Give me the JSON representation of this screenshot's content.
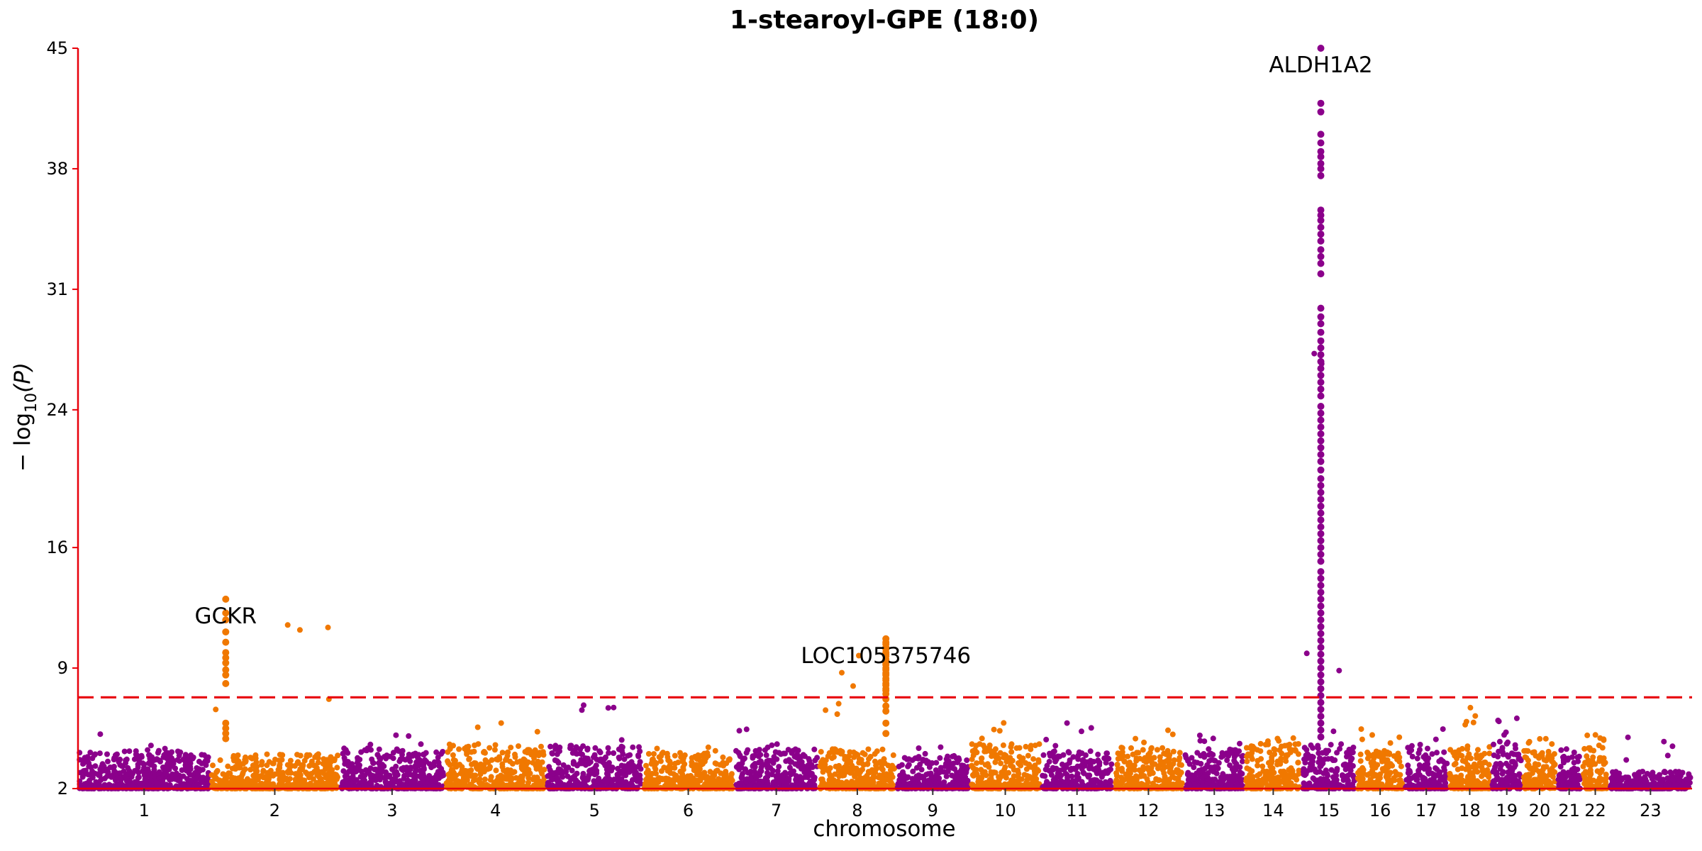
{
  "chart_data": {
    "type": "scatter",
    "subtype": "manhattan",
    "title": "1-stearoyl-GPE (18:0)",
    "xlabel": "chromosome",
    "ylabel_parts": {
      "pre": "− log",
      "sub": "10",
      "post": "(P)"
    },
    "ylim": [
      2,
      45
    ],
    "y_ticks": [
      2,
      9,
      16,
      24,
      31,
      38,
      45
    ],
    "grid": false,
    "legend": "none",
    "significance_threshold": 7.3,
    "colors": {
      "odd": "#8b008b",
      "even": "#f07800",
      "threshold": "#e8000b",
      "axis": "#e8000b"
    },
    "chromosomes": [
      {
        "label": "1",
        "width": 248,
        "base_top": 4.2,
        "max": 5.6
      },
      {
        "label": "2",
        "width": 242,
        "base_top": 4.0,
        "max": 13.0
      },
      {
        "label": "3",
        "width": 198,
        "base_top": 4.3,
        "max": 5.4
      },
      {
        "label": "4",
        "width": 190,
        "base_top": 4.6,
        "max": 6.2
      },
      {
        "label": "5",
        "width": 181,
        "base_top": 4.5,
        "max": 6.9
      },
      {
        "label": "6",
        "width": 171,
        "base_top": 4.1,
        "max": 5.1
      },
      {
        "label": "7",
        "width": 159,
        "base_top": 4.4,
        "max": 5.6
      },
      {
        "label": "8",
        "width": 145,
        "base_top": 4.3,
        "max": 10.7
      },
      {
        "label": "9",
        "width": 138,
        "base_top": 3.9,
        "max": 4.6
      },
      {
        "label": "10",
        "width": 134,
        "base_top": 4.6,
        "max": 6.0
      },
      {
        "label": "11",
        "width": 135,
        "base_top": 4.2,
        "max": 6.0
      },
      {
        "label": "12",
        "width": 133,
        "base_top": 4.4,
        "max": 5.5
      },
      {
        "label": "13",
        "width": 114,
        "base_top": 4.3,
        "max": 5.2
      },
      {
        "label": "14",
        "width": 107,
        "base_top": 4.6,
        "max": 5.2
      },
      {
        "label": "15",
        "width": 102,
        "base_top": 4.6,
        "max": 45.0
      },
      {
        "label": "16",
        "width": 90,
        "base_top": 4.2,
        "max": 5.9
      },
      {
        "label": "17",
        "width": 83,
        "base_top": 4.5,
        "max": 6.8
      },
      {
        "label": "18",
        "width": 80,
        "base_top": 4.5,
        "max": 6.9
      },
      {
        "label": "19",
        "width": 59,
        "base_top": 4.8,
        "max": 6.2
      },
      {
        "label": "20",
        "width": 64,
        "base_top": 4.2,
        "max": 5.5
      },
      {
        "label": "21",
        "width": 47,
        "base_top": 4.0,
        "max": 4.7
      },
      {
        "label": "22",
        "width": 51,
        "base_top": 4.6,
        "max": 5.4
      },
      {
        "label": "23",
        "width": 156,
        "base_top": 3.0,
        "max": 5.0
      }
    ],
    "peaks": [
      {
        "gene": "GCKR",
        "chrom": "2",
        "pos": 0.12,
        "values": [
          13.0,
          12.2,
          11.8,
          11.1,
          10.5,
          9.9,
          9.6,
          9.3,
          8.9,
          8.6,
          8.1,
          5.8,
          5.5,
          5.2,
          4.9
        ]
      },
      {
        "gene": "LOC105375746",
        "chrom": "8",
        "pos": 0.87,
        "values": [
          10.7,
          10.5,
          10.4,
          10.2,
          10.1,
          9.9,
          9.8,
          9.7,
          9.5,
          9.4,
          9.3,
          9.2,
          9.0,
          8.9,
          8.7,
          8.6,
          8.4,
          8.3,
          8.1,
          8.0,
          7.8,
          7.7,
          7.5,
          7.2,
          6.8,
          6.5,
          5.8,
          5.2
        ]
      },
      {
        "gene": "ALDH1A2",
        "chrom": "15",
        "pos": 0.35,
        "values": [
          45.0,
          41.8,
          41.3,
          40.0,
          39.5,
          39.0,
          38.7,
          38.3,
          38.0,
          37.6,
          35.6,
          35.3,
          35.0,
          34.6,
          34.2,
          33.8,
          33.3,
          32.9,
          32.5,
          31.9,
          29.9,
          29.4,
          29.0,
          28.5,
          28.0,
          27.6,
          27.2,
          26.8,
          26.4,
          26.0,
          25.6,
          25.2,
          24.8,
          24.2,
          23.8,
          23.4,
          23.0,
          22.6,
          22.2,
          21.8,
          21.4,
          21.0,
          20.5,
          20.0,
          19.6,
          19.2,
          18.8,
          18.4,
          18.0,
          17.6,
          17.2,
          16.8,
          16.4,
          16.0,
          15.6,
          15.2,
          14.6,
          14.2,
          13.8,
          13.4,
          13.0,
          12.6,
          12.2,
          11.8,
          11.4,
          11.0,
          10.6,
          10.2,
          9.8,
          9.4,
          9.0,
          8.6,
          8.2,
          7.8,
          7.4,
          7.0,
          6.6,
          6.2,
          5.8,
          5.4,
          5.0
        ]
      }
    ]
  }
}
